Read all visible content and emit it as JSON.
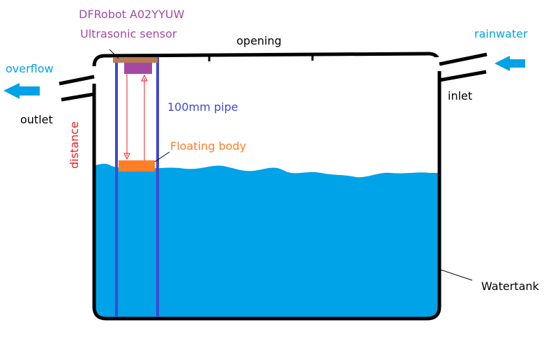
{
  "labels": {
    "sensor_model": "DFRobot A02YYUW",
    "sensor_type": "Ultrasonic sensor",
    "opening": "opening",
    "rainwater": "rainwater",
    "overflow": "overflow",
    "outlet": "outlet",
    "inlet": "inlet",
    "pipe": "100mm pipe",
    "floating_body": "Floating body",
    "distance": "distance",
    "watertank": "Watertank"
  },
  "colors": {
    "water": "#00a2e8",
    "tank_outline": "#000000",
    "pipe": "#3f48cc",
    "sensor": "#a349a4",
    "sensor_mount": "#b97a57",
    "float": "#ff7f27",
    "signal": "#ed1c24",
    "arrow": "#00a2e8",
    "label_purple": "#a349a4",
    "label_blue": "#00a2e8",
    "label_pipe": "#3f48cc",
    "label_orange": "#ff7f27",
    "label_red": "#ed1c24",
    "label_black": "#000000"
  }
}
